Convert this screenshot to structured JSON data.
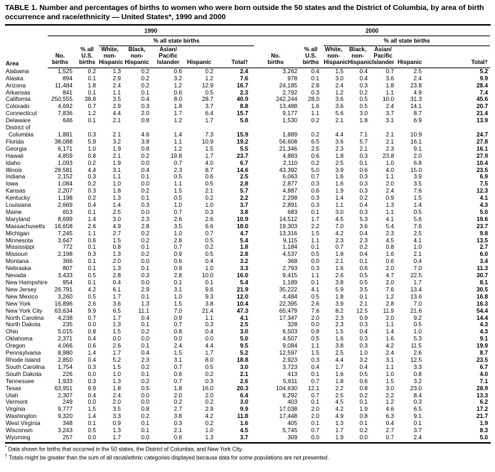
{
  "title": "TABLE 1. Number and percentages of births to women who were born outside the 50 states and the District of Columbia, by area of birth occurrence and race/ethnicity — United States*, 1990 and 2000",
  "table": {
    "year_groups": [
      {
        "label": "1990"
      },
      {
        "label": "2000"
      }
    ],
    "subgroup_label": "% all state births",
    "column_headers": {
      "area": "Area",
      "no_births": "No.\nbirths",
      "pct_us_births": "% all\nU.S.\nbirths",
      "white_non_hispanic": "White,\nnon-\nHispanic",
      "black_non_hispanic": "Black,\nnon-\nHispanic",
      "asian_pacific_islander": "Asian/\nPacific\nIslander",
      "hispanic": "Hispanic",
      "total": "Total†"
    },
    "rows": [
      {
        "area": "Alabama",
        "y1990": [
          "1,525",
          "0.2",
          "1.3",
          "0.2",
          "0.6",
          "0.2",
          "2.4"
        ],
        "y2000": [
          "3,262",
          "0.4",
          "1.5",
          "0.4",
          "0.7",
          "2.5",
          "5.2"
        ]
      },
      {
        "area": "Alaska",
        "y1990": [
          "894",
          "0.1",
          "2.9",
          "0.2",
          "3.2",
          "1.2",
          "7.6"
        ],
        "y2000": [
          "978",
          "0.1",
          "3.0",
          "0.4",
          "3.6",
          "2.4",
          "9.9"
        ]
      },
      {
        "area": "Arizona",
        "y1990": [
          "11,484",
          "1.8",
          "2.4",
          "0.2",
          "1.2",
          "12.9",
          "16.7"
        ],
        "y2000": [
          "24,185",
          "2.8",
          "2.4",
          "0.3",
          "1.8",
          "23.8",
          "28.4"
        ]
      },
      {
        "area": "Arkansas",
        "y1990": [
          "841",
          "0.1",
          "1.1",
          "0.1",
          "0.6",
          "0.5",
          "2.3"
        ],
        "y2000": [
          "2,792",
          "0.3",
          "1.2",
          "0.2",
          "1.1",
          "4.9",
          "7.4"
        ]
      },
      {
        "area": "California",
        "y1990": [
          "250,555",
          "38.8",
          "3.5",
          "0.4",
          "8.0",
          "28.7",
          "40.9"
        ],
        "y2000": [
          "242,244",
          "28.0",
          "3.6",
          "0.5",
          "10.0",
          "31.3",
          "45.6"
        ]
      },
      {
        "area": "Colorado",
        "y1990": [
          "4,692",
          "0.7",
          "2.9",
          "0.3",
          "1.8",
          "3.7",
          "8.8"
        ],
        "y2000": [
          "13,488",
          "1.6",
          "3.6",
          "0.5",
          "2.4",
          "14.1",
          "20.7"
        ]
      },
      {
        "area": "Connecticut",
        "y1990": [
          "7,836",
          "1.2",
          "4.4",
          "2.0",
          "1.7",
          "6.4",
          "15.7"
        ],
        "y2000": [
          "9,177",
          "1.1",
          "5.6",
          "3.0",
          "3.7",
          "8.7",
          "21.4"
        ]
      },
      {
        "area": "Delaware",
        "y1990": [
          "646",
          "0.1",
          "2.1",
          "0.8",
          "1.2",
          "1.7",
          "5.8"
        ],
        "y2000": [
          "1,530",
          "0.2",
          "2.1",
          "1.8",
          "3.1",
          "6.9",
          "13.9"
        ]
      },
      {
        "area": "District of\nColumbia",
        "y1990": [
          "1,881",
          "0.3",
          "2.1",
          "4.6",
          "1.4",
          "7.3",
          "15.9"
        ],
        "y2000": [
          "1,889",
          "0.2",
          "4.4",
          "7.1",
          "2.1",
          "10.9",
          "24.7"
        ]
      },
      {
        "area": "Florida",
        "y1990": [
          "38,088",
          "5.9",
          "3.2",
          "3.8",
          "1.1",
          "10.9",
          "19.2"
        ],
        "y2000": [
          "56,608",
          "6.5",
          "3.6",
          "5.7",
          "2.1",
          "16.1",
          "27.8"
        ]
      },
      {
        "area": "Georgia",
        "y1990": [
          "6,171",
          "1.0",
          "1.9",
          "0.8",
          "1.2",
          "1.5",
          "5.5"
        ],
        "y2000": [
          "21,346",
          "2.5",
          "2.3",
          "2.1",
          "2.3",
          "9.1",
          "16.1"
        ]
      },
      {
        "area": "Hawaii",
        "y1990": [
          "4,859",
          "0.8",
          "2.1",
          "0.2",
          "19.8",
          "1.7",
          "23.7"
        ],
        "y2000": [
          "4,883",
          "0.6",
          "1.8",
          "0.3",
          "23.8",
          "2.0",
          "27.9"
        ]
      },
      {
        "area": "Idaho",
        "y1990": [
          "1,093",
          "0.2",
          "1.9",
          "0.0",
          "0.7",
          "4.0",
          "6.7"
        ],
        "y2000": [
          "2,110",
          "0.2",
          "2.5",
          "0.1",
          "1.0",
          "6.8",
          "10.4"
        ]
      },
      {
        "area": "Illinois",
        "y1990": [
          "28,581",
          "4.4",
          "3.1",
          "0.4",
          "2.3",
          "8.7",
          "14.6"
        ],
        "y2000": [
          "43,392",
          "5.0",
          "3.9",
          "0.6",
          "4.0",
          "15.0",
          "23.5"
        ]
      },
      {
        "area": "Indiana",
        "y1990": [
          "2,152",
          "0.3",
          "1.1",
          "0.1",
          "0.5",
          "0.6",
          "2.5"
        ],
        "y2000": [
          "6,063",
          "0.7",
          "1.6",
          "0.3",
          "1.1",
          "3.9",
          "6.9"
        ]
      },
      {
        "area": "Iowa",
        "y1990": [
          "1,084",
          "0.2",
          "1.0",
          "0.0",
          "1.1",
          "0.5",
          "2.8"
        ],
        "y2000": [
          "2,877",
          "0.3",
          "1.6",
          "0.3",
          "2.0",
          "3.5",
          "7.5"
        ]
      },
      {
        "area": "Kansas",
        "y1990": [
          "2,207",
          "0.3",
          "1.8",
          "0.2",
          "1.5",
          "2.1",
          "5.7"
        ],
        "y2000": [
          "4,887",
          "0.6",
          "1.9",
          "0.3",
          "2.4",
          "7.6",
          "12.3"
        ]
      },
      {
        "area": "Kentucky",
        "y1990": [
          "1,198",
          "0.2",
          "1.3",
          "0.1",
          "0.5",
          "0.2",
          "2.2"
        ],
        "y2000": [
          "2,298",
          "0.3",
          "1.4",
          "0.2",
          "0.9",
          "1.5",
          "4.1"
        ]
      },
      {
        "area": "Louisiana",
        "y1990": [
          "2,669",
          "0.4",
          "1.4",
          "0.3",
          "1.0",
          "1.0",
          "3.7"
        ],
        "y2000": [
          "2,891",
          "0.3",
          "1.1",
          "0.4",
          "1.3",
          "1.4",
          "4.3"
        ]
      },
      {
        "area": "Maine",
        "y1990": [
          "653",
          "0.1",
          "2.5",
          "0.0",
          "0.7",
          "0.3",
          "3.8"
        ],
        "y2000": [
          "683",
          "0.1",
          "3.0",
          "0.3",
          "1.1",
          "0.5",
          "5.0"
        ]
      },
      {
        "area": "Maryland",
        "y1990": [
          "8,699",
          "1.4",
          "3.0",
          "2.3",
          "2.6",
          "2.6",
          "10.9"
        ],
        "y2000": [
          "14,512",
          "1.7",
          "4.5",
          "5.3",
          "4.1",
          "5.6",
          "19.6"
        ]
      },
      {
        "area": "Massachusetts",
        "y1990": [
          "16,658",
          "2.6",
          "4.9",
          "2.8",
          "3.5",
          "6.6",
          "18.0"
        ],
        "y2000": [
          "19,303",
          "2.2",
          "7.0",
          "3.6",
          "5.4",
          "7.6",
          "23.7"
        ]
      },
      {
        "area": "Michigan",
        "y1990": [
          "7,245",
          "1.1",
          "2.7",
          "0.2",
          "1.0",
          "0.7",
          "4.7"
        ],
        "y2000": [
          "13,316",
          "1.5",
          "4.2",
          "0.4",
          "2.3",
          "2.5",
          "9.8"
        ]
      },
      {
        "area": "Minnesota",
        "y1990": [
          "3,647",
          "0.6",
          "1.5",
          "0.2",
          "2.8",
          "0.5",
          "5.4"
        ],
        "y2000": [
          "9,115",
          "1.1",
          "2.3",
          "2.3",
          "4.5",
          "4.1",
          "13.5"
        ]
      },
      {
        "area": "Mississippi",
        "y1990": [
          "772",
          "0.1",
          "0.8",
          "0.1",
          "0.7",
          "0.2",
          "1.8"
        ],
        "y2000": [
          "1,184",
          "0.1",
          "0.7",
          "0.2",
          "0.8",
          "1.0",
          "2.7"
        ]
      },
      {
        "area": "Missouri",
        "y1990": [
          "2,198",
          "0.3",
          "1.3",
          "0.2",
          "0.9",
          "0.5",
          "2.8"
        ],
        "y2000": [
          "4,537",
          "0.5",
          "1.8",
          "0.4",
          "1.6",
          "2.1",
          "6.0"
        ]
      },
      {
        "area": "Montana",
        "y1990": [
          "366",
          "0.1",
          "2.0",
          "0.0",
          "0.6",
          "0.4",
          "3.2"
        ],
        "y2000": [
          "368",
          "0.0",
          "2.1",
          "0.1",
          "0.6",
          "0.4",
          "3.4"
        ]
      },
      {
        "area": "Nebraska",
        "y1990": [
          "807",
          "0.1",
          "1.3",
          "0.1",
          "0.9",
          "1.0",
          "3.3"
        ],
        "y2000": [
          "2,793",
          "0.3",
          "1.6",
          "0.6",
          "2.0",
          "7.0",
          "11.3"
        ]
      },
      {
        "area": "Nevada",
        "y1990": [
          "3,433",
          "0.5",
          "2.8",
          "0.3",
          "2.8",
          "10.0",
          "16.0"
        ],
        "y2000": [
          "9,415",
          "1.1",
          "2.6",
          "0.5",
          "4.7",
          "22.5",
          "30.7"
        ]
      },
      {
        "area": "New Hampshire",
        "y1990": [
          "954",
          "0.1",
          "0.4",
          "0.0",
          "0.1",
          "0.1",
          "5.4"
        ],
        "y2000": [
          "1,189",
          "0.1",
          "3.8",
          "0.5",
          "2.0",
          "1.7",
          "8.1"
        ]
      },
      {
        "area": "New Jersey",
        "y1990": [
          "26,791",
          "4.2",
          "6.1",
          "2.9",
          "3.1",
          "9.6",
          "21.9"
        ],
        "y2000": [
          "35,222",
          "4.1",
          "5.9",
          "3.5",
          "7.6",
          "13.4",
          "30.5"
        ]
      },
      {
        "area": "New Mexico",
        "y1990": [
          "3,260",
          "0.5",
          "1.7",
          "0.1",
          "1.0",
          "9.3",
          "12.0"
        ],
        "y2000": [
          "4,484",
          "0.5",
          "1.8",
          "0.1",
          "1.2",
          "13.6",
          "16.8"
        ]
      },
      {
        "area": "New York",
        "y1990": [
          "16,896",
          "2.6",
          "3.6",
          "1.3",
          "1.5",
          "3.8",
          "10.4"
        ],
        "y2000": [
          "22,395",
          "2.6",
          "3.9",
          "2.1",
          "2.8",
          "7.0",
          "16.3"
        ]
      },
      {
        "area": "New York City",
        "y1990": [
          "63,634",
          "9.9",
          "6.5",
          "11.1",
          "7.0",
          "21.4",
          "47.3"
        ],
        "y2000": [
          "65,479",
          "7.6",
          "8.2",
          "12.5",
          "11.9",
          "21.6",
          "54.4"
        ]
      },
      {
        "area": "North Carolina",
        "y1990": [
          "4,238",
          "0.7",
          "1.7",
          "0.4",
          "0.9",
          "1.1",
          "4.1"
        ],
        "y2000": [
          "17,347",
          "2.0",
          "2.3",
          "0.9",
          "2.0",
          "9.2",
          "14.4"
        ]
      },
      {
        "area": "North Dakota",
        "y1990": [
          "235",
          "0.0",
          "1.3",
          "0.1",
          "0.7",
          "0.3",
          "2.5"
        ],
        "y2000": [
          "328",
          "0.0",
          "2.3",
          "0.3",
          "1.1",
          "0.5",
          "4.3"
        ]
      },
      {
        "area": "Ohio",
        "y1990": [
          "5,015",
          "0.8",
          "1.5",
          "0.2",
          "0.8",
          "0.4",
          "3.0"
        ],
        "y2000": [
          "6,503",
          "0.8",
          "1.5",
          "0.4",
          "1.4",
          "1.0",
          "4.3"
        ]
      },
      {
        "area": "Oklahoma",
        "y1990": [
          "2,371",
          "0.4",
          "0.0",
          "0.0",
          "0.0",
          "0.0",
          "5.0"
        ],
        "y2000": [
          "4,507",
          "0.5",
          "1.6",
          "0.3",
          "1.6",
          "5.3",
          "9.1"
        ]
      },
      {
        "area": "Oregon",
        "y1990": [
          "4,066",
          "0.6",
          "2.6",
          "0.1",
          "2.4",
          "4.4",
          "9.5"
        ],
        "y2000": [
          "9,084",
          "1.1",
          "3.8",
          "0.3",
          "4.2",
          "11.5",
          "19.9"
        ]
      },
      {
        "area": "Pennsylvania",
        "y1990": [
          "8,980",
          "1.4",
          "1.7",
          "0.4",
          "1.5",
          "1.7",
          "5.2"
        ],
        "y2000": [
          "12,597",
          "1.5",
          "2.5",
          "1.0",
          "2.4",
          "2.6",
          "8.7"
        ]
      },
      {
        "area": "Rhode Island",
        "y1990": [
          "2,850",
          "0.4",
          "5.2",
          "2.3",
          "3.1",
          "8.0",
          "18.8"
        ],
        "y2000": [
          "2,923",
          "0.3",
          "4.4",
          "3.2",
          "3.1",
          "12.5",
          "23.5"
        ]
      },
      {
        "area": "South Carolina",
        "y1990": [
          "1,754",
          "0.3",
          "1.5",
          "0.2",
          "0.7",
          "0.5",
          "3.0"
        ],
        "y2000": [
          "3,723",
          "0.4",
          "1.7",
          "0.4",
          "1.1",
          "3.3",
          "6.7"
        ]
      },
      {
        "area": "South Dakota",
        "y1990": [
          "226",
          "0.0",
          "1.0",
          "0.1",
          "0.6",
          "0.2",
          "2.1"
        ],
        "y2000": [
          "413",
          "0.1",
          "1.6",
          "0.5",
          "1.0",
          "0.8",
          "4.0"
        ]
      },
      {
        "area": "Tennessee",
        "y1990": [
          "1,933",
          "0.3",
          "1.3",
          "0.2",
          "0.7",
          "0.3",
          "2.6"
        ],
        "y2000": [
          "5,611",
          "0.7",
          "1.8",
          "0.6",
          "1.5",
          "3.2",
          "7.1"
        ]
      },
      {
        "area": "Texas",
        "y1990": [
          "63,951",
          "9.9",
          "1.8",
          "0.5",
          "1.8",
          "16.0",
          "20.3"
        ],
        "y2000": [
          "104,630",
          "12.1",
          "2.2",
          "0.8",
          "3.0",
          "23.0",
          "28.9"
        ]
      },
      {
        "area": "Utah",
        "y1990": [
          "2,307",
          "0.4",
          "2.4",
          "0.0",
          "2.0",
          "2.0",
          "6.4"
        ],
        "y2000": [
          "6,292",
          "0.7",
          "2.5",
          "0.2",
          "2.2",
          "8.4",
          "13.3"
        ]
      },
      {
        "area": "Vermont",
        "y1990": [
          "249",
          "0.0",
          "2.0",
          "0.0",
          "0.2",
          "0.2",
          "3.0"
        ],
        "y2000": [
          "403",
          "0.1",
          "4.5",
          "0.1",
          "1.2",
          "0.3",
          "6.2"
        ]
      },
      {
        "area": "Virginia",
        "y1990": [
          "9,777",
          "1.5",
          "3.5",
          "0.8",
          "2.7",
          "2.9",
          "9.9"
        ],
        "y2000": [
          "17,038",
          "2.0",
          "4.2",
          "1.9",
          "4.6",
          "6.5",
          "17.2"
        ]
      },
      {
        "area": "Washington",
        "y1990": [
          "9,320",
          "1.4",
          "3.3",
          "0.2",
          "3.8",
          "4.2",
          "11.8"
        ],
        "y2000": [
          "17,448",
          "2.0",
          "4.9",
          "0.8",
          "6.3",
          "9.1",
          "21.7"
        ]
      },
      {
        "area": "West Virginia",
        "y1990": [
          "348",
          "0.1",
          "0.9",
          "0.1",
          "0.3",
          "0.2",
          "1.6"
        ],
        "y2000": [
          "405",
          "0.1",
          "1.3",
          "0.1",
          "0.4",
          "0.1",
          "1.9"
        ]
      },
      {
        "area": "Wisconsin",
        "y1990": [
          "3,243",
          "0.5",
          "1.3",
          "0.1",
          "2.1",
          "1.0",
          "4.5"
        ],
        "y2000": [
          "5,745",
          "0.7",
          "1.7",
          "0.2",
          "2.7",
          "3.7",
          "8.3"
        ]
      },
      {
        "area": "Wyoming",
        "y1990": [
          "257",
          "0.0",
          "1.7",
          "0.0",
          "0.6",
          "1.3",
          "3.7"
        ],
        "y2000": [
          "309",
          "0.0",
          "1.9",
          "0.0",
          "0.7",
          "2.4",
          "5.0"
        ]
      }
    ]
  },
  "footnotes": [
    {
      "mark": "*",
      "text": "Data shown for births that occurred in the 50 states, the District of Columbia, and New York City."
    },
    {
      "mark": "†",
      "text": "Totals might be greater than the sum of all racial/ethnic categories displayed because data for some populations are not presented."
    }
  ]
}
